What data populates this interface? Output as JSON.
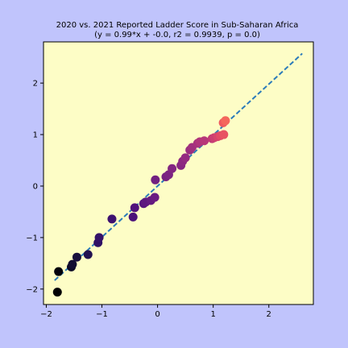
{
  "chart_data": {
    "type": "scatter",
    "title": "2020 vs. 2021 Reported Ladder Score in Sub-Saharan Africa",
    "subtitle": "(y = 0.99*x + -0.0, r2 = 0.9939, p = 0.0)",
    "xlabel": "",
    "ylabel": "",
    "xlim": [
      -2.05,
      2.8
    ],
    "ylim": [
      -2.3,
      2.8
    ],
    "x_ticks": [
      -2,
      -1,
      0,
      1,
      2
    ],
    "y_ticks": [
      -2,
      -1,
      0,
      1,
      2
    ],
    "grid": false,
    "colors": {
      "figure_background": "#c0c4fc",
      "plot_background": "#fdfdc6",
      "fit_line": "#2b7bba"
    },
    "fit_line": {
      "slope": 0.99,
      "intercept": 0.0,
      "x_range": [
        -1.85,
        2.6
      ]
    },
    "points": [
      {
        "x": -1.8,
        "y": -2.06,
        "color": "#000004"
      },
      {
        "x": -1.78,
        "y": -1.66,
        "color": "#02020c"
      },
      {
        "x": -1.55,
        "y": -1.57,
        "color": "#0c0926"
      },
      {
        "x": -1.53,
        "y": -1.52,
        "color": "#120d31"
      },
      {
        "x": -1.45,
        "y": -1.38,
        "color": "#180f3d"
      },
      {
        "x": -1.25,
        "y": -1.33,
        "color": "#221150"
      },
      {
        "x": -1.07,
        "y": -1.1,
        "color": "#2f1163"
      },
      {
        "x": -1.05,
        "y": -1.0,
        "color": "#341168"
      },
      {
        "x": -0.82,
        "y": -0.64,
        "color": "#3e1170"
      },
      {
        "x": -0.44,
        "y": -0.6,
        "color": "#4a1079"
      },
      {
        "x": -0.41,
        "y": -0.42,
        "color": "#51127c"
      },
      {
        "x": -0.25,
        "y": -0.34,
        "color": "#59157e"
      },
      {
        "x": -0.21,
        "y": -0.31,
        "color": "#5e177f"
      },
      {
        "x": -0.12,
        "y": -0.28,
        "color": "#641a80"
      },
      {
        "x": -0.05,
        "y": -0.22,
        "color": "#6a1c81"
      },
      {
        "x": -0.04,
        "y": 0.12,
        "color": "#711f81"
      },
      {
        "x": 0.15,
        "y": 0.18,
        "color": "#772181"
      },
      {
        "x": 0.2,
        "y": 0.22,
        "color": "#7c2382"
      },
      {
        "x": 0.26,
        "y": 0.34,
        "color": "#822581"
      },
      {
        "x": 0.42,
        "y": 0.4,
        "color": "#882781"
      },
      {
        "x": 0.45,
        "y": 0.48,
        "color": "#8e2981"
      },
      {
        "x": 0.5,
        "y": 0.55,
        "color": "#942c80"
      },
      {
        "x": 0.58,
        "y": 0.7,
        "color": "#9a2e80"
      },
      {
        "x": 0.62,
        "y": 0.75,
        "color": "#a1307e"
      },
      {
        "x": 0.72,
        "y": 0.83,
        "color": "#a8327d"
      },
      {
        "x": 0.76,
        "y": 0.86,
        "color": "#b0357b"
      },
      {
        "x": 0.84,
        "y": 0.88,
        "color": "#b73779"
      },
      {
        "x": 0.98,
        "y": 0.92,
        "color": "#c03a76"
      },
      {
        "x": 1.02,
        "y": 0.94,
        "color": "#cc3f71"
      },
      {
        "x": 1.08,
        "y": 0.96,
        "color": "#d6456c"
      },
      {
        "x": 1.13,
        "y": 0.98,
        "color": "#e04c67"
      },
      {
        "x": 1.19,
        "y": 1.0,
        "color": "#e85362"
      },
      {
        "x": 1.18,
        "y": 1.23,
        "color": "#ef5a5f"
      },
      {
        "x": 1.22,
        "y": 1.27,
        "color": "#f4675c"
      }
    ]
  }
}
